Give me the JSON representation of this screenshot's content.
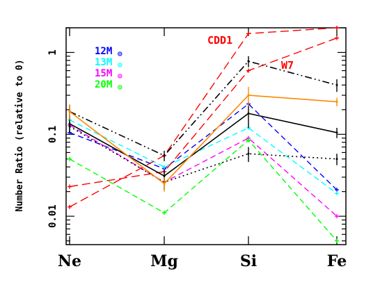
{
  "chart_data": {
    "type": "line",
    "title": "",
    "xlabel": "",
    "ylabel": "Number Ratio (relative to 0)",
    "categories": [
      "Ne",
      "Mg",
      "Si",
      "Fe"
    ],
    "yscale": "log",
    "ylim": [
      0.0045,
      2.0
    ],
    "yticks": [
      {
        "value": 0.01,
        "label": "0.01"
      },
      {
        "value": 0.1,
        "label": "0.1"
      },
      {
        "value": 1,
        "label": "1"
      }
    ],
    "legend": {
      "placement": "top-left",
      "entries": [
        {
          "text": "12M",
          "symbol": "⊙",
          "color": "#0000ff"
        },
        {
          "text": "13M",
          "symbol": "⊙",
          "color": "#00ffff"
        },
        {
          "text": "15M",
          "symbol": "⊙",
          "color": "#ff00ff"
        },
        {
          "text": "20M",
          "symbol": "⊙",
          "color": "#00ff00"
        }
      ]
    },
    "annotations": [
      {
        "text": "CDD1",
        "color": "#ff0000"
      },
      {
        "text": "W7",
        "color": "#ff0000"
      }
    ],
    "series": [
      {
        "style": "model",
        "color": "#0000ff",
        "dash": "8,5",
        "values": [
          0.105,
          0.038,
          0.235,
          0.021
        ]
      },
      {
        "style": "model",
        "color": "#00ffff",
        "dash": "8,5",
        "values": [
          0.15,
          0.04,
          0.12,
          0.019
        ]
      },
      {
        "style": "model",
        "color": "#ff00ff",
        "dash": "8,5",
        "values": [
          0.13,
          0.026,
          0.09,
          0.01
        ]
      },
      {
        "style": "model",
        "color": "#00ff00",
        "dash": "8,5",
        "values": [
          0.05,
          0.011,
          0.085,
          0.005
        ]
      },
      {
        "name": "CDD1",
        "style": "model",
        "color": "#ff0000",
        "dash": "12,6",
        "values": [
          0.013,
          0.055,
          1.7,
          2.0
        ]
      },
      {
        "name": "W7",
        "style": "model",
        "color": "#ff0000",
        "dash": "12,6",
        "values": [
          0.023,
          0.035,
          0.6,
          1.5
        ]
      },
      {
        "style": "obs",
        "color": "#000000",
        "dash": "10,4,2,4,2,4",
        "values": [
          0.19,
          0.055,
          0.78,
          0.4
        ],
        "err": [
          0.04,
          0.008,
          0.12,
          0.07
        ]
      },
      {
        "style": "obs",
        "color": "#000000",
        "dash": "2,4",
        "values": [
          0.125,
          0.026,
          0.058,
          0.05
        ],
        "err": [
          0.02,
          0.005,
          0.012,
          0.008
        ]
      },
      {
        "style": "obs",
        "color": "#000000",
        "dash": "",
        "values": [
          0.135,
          0.031,
          0.18,
          0.105
        ],
        "err": [
          0.03,
          0.006,
          0.06,
          0.015
        ]
      },
      {
        "style": "obs",
        "color": "#ff8800",
        "dash": "",
        "values": [
          0.19,
          0.025,
          0.3,
          0.25
        ],
        "err": [
          0.04,
          0.005,
          0.08,
          0.03
        ]
      }
    ]
  }
}
